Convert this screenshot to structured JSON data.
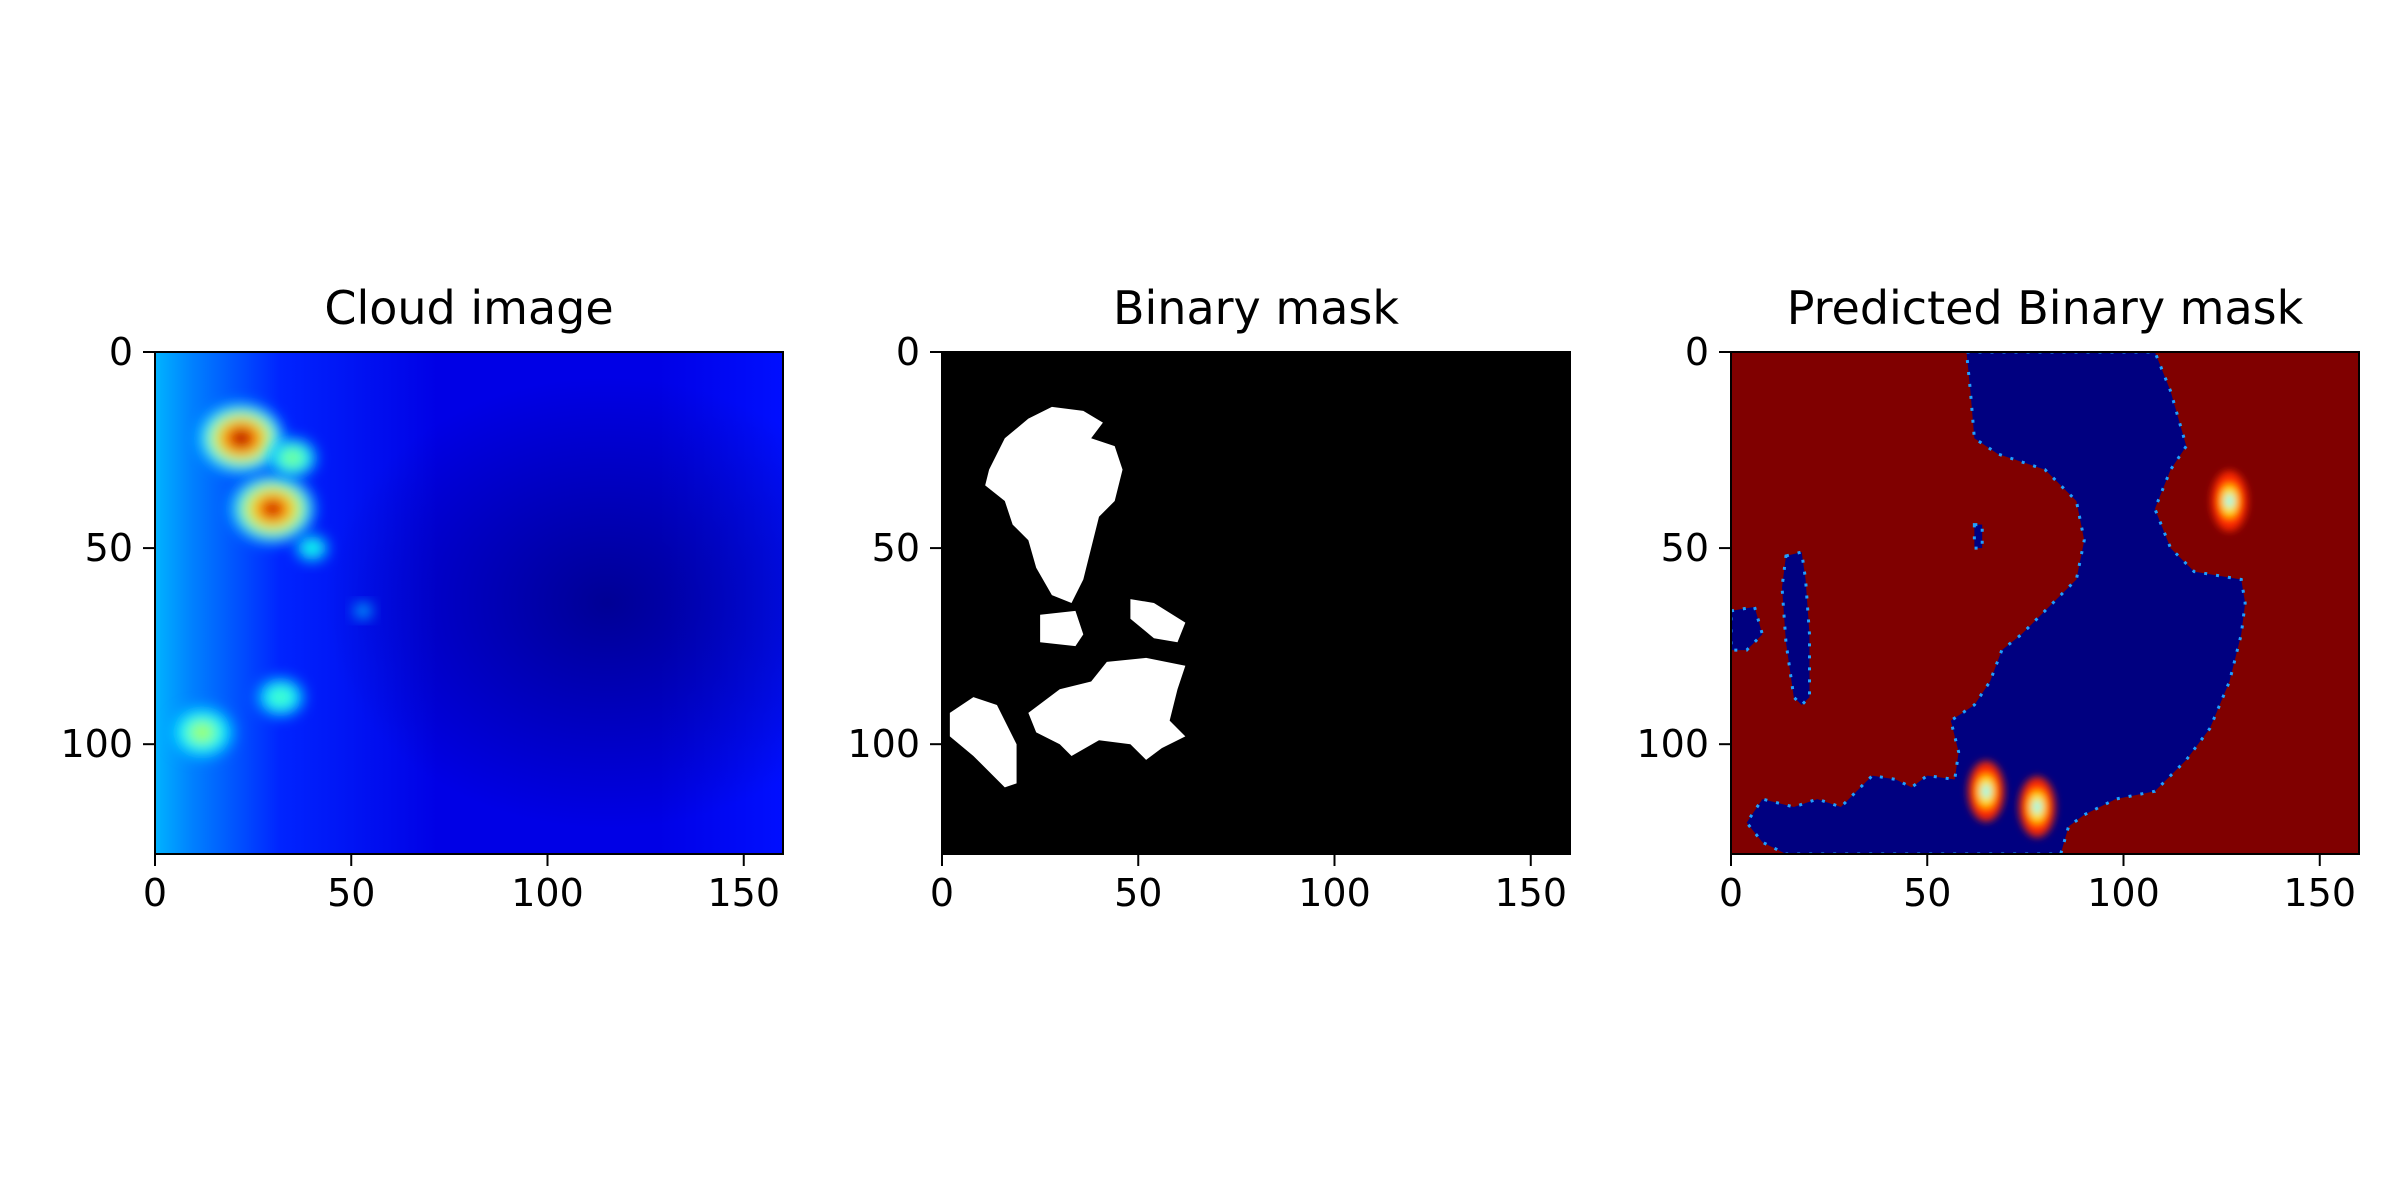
{
  "chart_data": [
    {
      "type": "heatmap",
      "title": "Cloud image",
      "colormap": "jet",
      "xlim": [
        0,
        160
      ],
      "ylim": [
        128,
        0
      ],
      "xticks": [
        0,
        50,
        100,
        150
      ],
      "yticks": [
        0,
        50,
        100
      ],
      "grid": false,
      "hotspots": [
        {
          "x": 22,
          "y": 22,
          "intensity": 1.0
        },
        {
          "x": 30,
          "y": 40,
          "intensity": 0.95
        },
        {
          "x": 35,
          "y": 27,
          "intensity": 0.5
        },
        {
          "x": 40,
          "y": 50,
          "intensity": 0.4
        },
        {
          "x": 32,
          "y": 88,
          "intensity": 0.45
        },
        {
          "x": 12,
          "y": 97,
          "intensity": 0.55
        },
        {
          "x": 53,
          "y": 66,
          "intensity": 0.3
        }
      ]
    },
    {
      "type": "heatmap",
      "title": "Binary mask",
      "colormap": "gray",
      "xlim": [
        0,
        160
      ],
      "ylim": [
        128,
        0
      ],
      "xticks": [
        0,
        50,
        100,
        150
      ],
      "yticks": [
        0,
        50,
        100
      ],
      "grid": false,
      "regions": [
        [
          [
            12,
            30
          ],
          [
            16,
            22
          ],
          [
            22,
            17
          ],
          [
            28,
            14
          ],
          [
            36,
            15
          ],
          [
            41,
            18
          ],
          [
            38,
            22
          ],
          [
            44,
            24
          ],
          [
            46,
            30
          ],
          [
            44,
            38
          ],
          [
            40,
            42
          ],
          [
            38,
            50
          ],
          [
            36,
            58
          ],
          [
            33,
            64
          ],
          [
            28,
            62
          ],
          [
            24,
            55
          ],
          [
            22,
            48
          ],
          [
            18,
            44
          ],
          [
            16,
            38
          ],
          [
            11,
            34
          ]
        ],
        [
          [
            25,
            67
          ],
          [
            34,
            66
          ],
          [
            36,
            72
          ],
          [
            34,
            75
          ],
          [
            25,
            74
          ]
        ],
        [
          [
            48,
            63
          ],
          [
            54,
            64
          ],
          [
            62,
            69
          ],
          [
            60,
            74
          ],
          [
            54,
            73
          ],
          [
            48,
            68
          ]
        ],
        [
          [
            2,
            92
          ],
          [
            8,
            88
          ],
          [
            14,
            90
          ],
          [
            19,
            100
          ],
          [
            19,
            110
          ],
          [
            16,
            111
          ],
          [
            8,
            103
          ],
          [
            2,
            98
          ]
        ],
        [
          [
            22,
            92
          ],
          [
            30,
            86
          ],
          [
            38,
            84
          ],
          [
            42,
            79
          ],
          [
            52,
            78
          ],
          [
            62,
            80
          ],
          [
            60,
            86
          ],
          [
            58,
            94
          ],
          [
            62,
            98
          ],
          [
            56,
            101
          ],
          [
            52,
            104
          ],
          [
            48,
            100
          ],
          [
            40,
            99
          ],
          [
            33,
            103
          ],
          [
            30,
            100
          ],
          [
            24,
            97
          ]
        ]
      ]
    },
    {
      "type": "heatmap",
      "title": "Predicted Binary mask",
      "colormap": "jet",
      "xlim": [
        0,
        160
      ],
      "ylim": [
        128,
        0
      ],
      "xticks": [
        0,
        50,
        100,
        150
      ],
      "yticks": [
        0,
        50,
        100
      ],
      "grid": false,
      "background_class": 1,
      "regions": [
        [
          [
            60,
            0
          ],
          [
            108,
            0
          ],
          [
            112,
            10
          ],
          [
            116,
            24
          ],
          [
            112,
            30
          ],
          [
            108,
            40
          ],
          [
            112,
            50
          ],
          [
            118,
            56
          ],
          [
            130,
            58
          ],
          [
            131,
            64
          ],
          [
            130,
            72
          ],
          [
            127,
            84
          ],
          [
            122,
            96
          ],
          [
            116,
            104
          ],
          [
            108,
            112
          ],
          [
            98,
            114
          ],
          [
            90,
            118
          ],
          [
            86,
            121
          ],
          [
            84,
            128
          ],
          [
            14,
            128
          ],
          [
            8,
            125
          ],
          [
            4,
            120
          ],
          [
            8,
            114
          ],
          [
            16,
            116
          ],
          [
            22,
            114
          ],
          [
            28,
            116
          ],
          [
            36,
            108
          ],
          [
            42,
            109
          ],
          [
            46,
            111
          ],
          [
            50,
            108
          ],
          [
            57,
            109
          ],
          [
            58,
            102
          ],
          [
            56,
            94
          ],
          [
            62,
            90
          ],
          [
            66,
            84
          ],
          [
            69,
            76
          ],
          [
            74,
            72
          ],
          [
            78,
            68
          ],
          [
            82,
            64
          ],
          [
            88,
            58
          ],
          [
            90,
            48
          ],
          [
            88,
            38
          ],
          [
            80,
            30
          ],
          [
            68,
            26
          ],
          [
            62,
            22
          ],
          [
            61,
            10
          ]
        ],
        [
          [
            14,
            52
          ],
          [
            18,
            51
          ],
          [
            19,
            58
          ],
          [
            20,
            72
          ],
          [
            20,
            88
          ],
          [
            18,
            90
          ],
          [
            16,
            88
          ],
          [
            14,
            74
          ],
          [
            13,
            60
          ]
        ],
        [
          [
            0,
            66
          ],
          [
            6,
            65
          ],
          [
            8,
            72
          ],
          [
            4,
            76
          ],
          [
            0,
            76
          ]
        ],
        [
          [
            62,
            44
          ],
          [
            64,
            44
          ],
          [
            64,
            50
          ],
          [
            62,
            50
          ]
        ]
      ],
      "hotspots": [
        {
          "x": 127,
          "y": 38,
          "intensity": 0.0
        },
        {
          "x": 65,
          "y": 112,
          "intensity": 0.2
        },
        {
          "x": 78,
          "y": 116,
          "intensity": 0.3
        }
      ]
    }
  ]
}
